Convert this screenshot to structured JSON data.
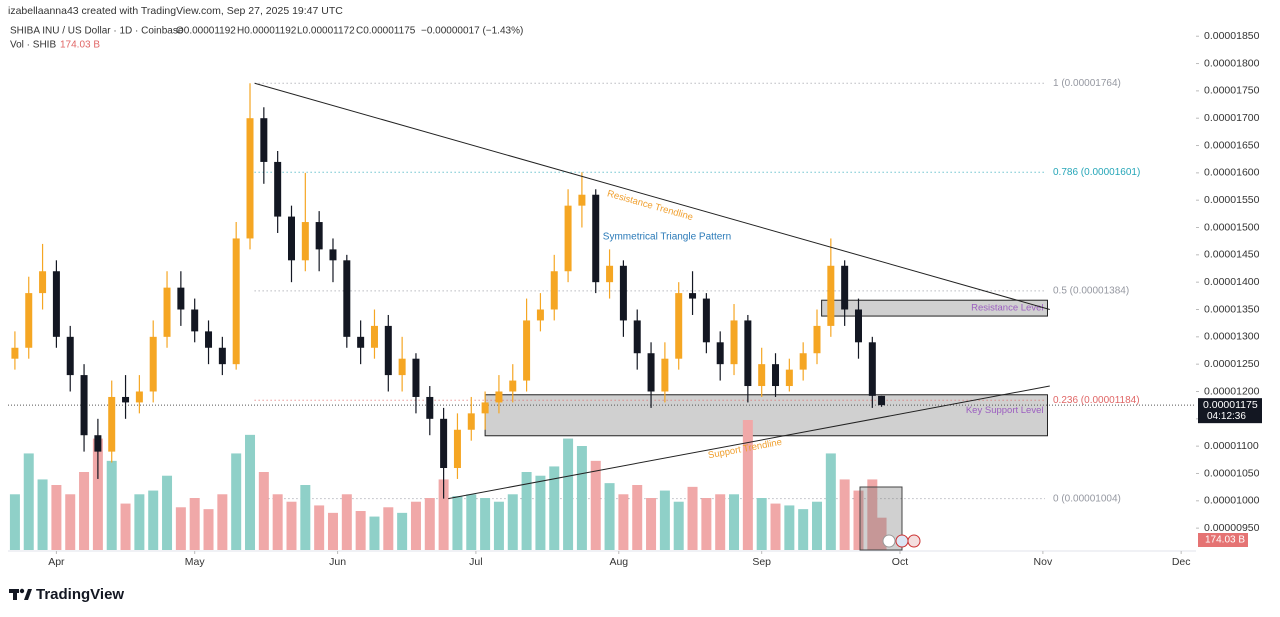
{
  "header": {
    "credit": "izabellaanna43 created with TradingView.com, Sep 27, 2025 19:47 UTC",
    "symbol": "SHIBA INU / US Dollar · 1D · Coinbase",
    "open": "O0.00001192",
    "high": "H0.00001192",
    "low": "L0.00001172",
    "close": "C0.00001175",
    "change": "−0.00000017 (−1.43%)",
    "volume_name": "Vol · SHIB",
    "volume": "174.03 B"
  },
  "footer": {
    "brand": "TradingView"
  },
  "chart_data": {
    "type": "candlestick",
    "up_color": "#f5a623",
    "down_color": "#131722",
    "volume_up_color": "#8fd0c8",
    "volume_down_color": "#f0a8a8",
    "xlim": [
      -1.5,
      256
    ],
    "xticks": [
      {
        "value": 9,
        "label": "Apr"
      },
      {
        "value": 39,
        "label": "May"
      },
      {
        "value": 70,
        "label": "Jun"
      },
      {
        "value": 100,
        "label": "Jul"
      },
      {
        "value": 131,
        "label": "Aug"
      },
      {
        "value": 162,
        "label": "Sep"
      },
      {
        "value": 192,
        "label": "Oct"
      },
      {
        "value": 223,
        "label": "Nov"
      },
      {
        "value": 253,
        "label": "Dec"
      }
    ],
    "ylim": [
      9.1e-06,
      1.876e-05
    ],
    "yticks": [
      {
        "value": 1.85e-05,
        "label": "0.00001850"
      },
      {
        "value": 1.8e-05,
        "label": "0.00001800"
      },
      {
        "value": 1.75e-05,
        "label": "0.00001750"
      },
      {
        "value": 1.7e-05,
        "label": "0.00001700"
      },
      {
        "value": 1.65e-05,
        "label": "0.00001650"
      },
      {
        "value": 1.6e-05,
        "label": "0.00001600"
      },
      {
        "value": 1.55e-05,
        "label": "0.00001550"
      },
      {
        "value": 1.5e-05,
        "label": "0.00001500"
      },
      {
        "value": 1.45e-05,
        "label": "0.00001450"
      },
      {
        "value": 1.4e-05,
        "label": "0.00001400"
      },
      {
        "value": 1.35e-05,
        "label": "0.00001350"
      },
      {
        "value": 1.3e-05,
        "label": "0.00001300"
      },
      {
        "value": 1.25e-05,
        "label": "0.00001250"
      },
      {
        "value": 1.2e-05,
        "label": "0.00001200"
      },
      {
        "value": 1.15e-05,
        "label": "0.00001150"
      },
      {
        "value": 1.1e-05,
        "label": "0.00001100"
      },
      {
        "value": 1.05e-05,
        "label": "0.00001050"
      },
      {
        "value": 1e-05,
        "label": "0.00001000"
      },
      {
        "value": 9.5e-06,
        "label": "0.00000950"
      }
    ],
    "x": [
      0,
      3,
      6,
      9,
      12,
      15,
      18,
      21,
      24,
      27,
      30,
      33,
      36,
      39,
      42,
      45,
      48,
      51,
      54,
      57,
      60,
      63,
      66,
      69,
      72,
      75,
      78,
      81,
      84,
      87,
      90,
      93,
      96,
      99,
      102,
      105,
      108,
      111,
      114,
      117,
      120,
      123,
      126,
      129,
      132,
      135,
      138,
      141,
      144,
      147,
      150,
      153,
      156,
      159,
      162,
      165,
      168,
      171,
      174,
      177,
      180,
      183,
      186,
      188
    ],
    "open": [
      1.26e-05,
      1.28e-05,
      1.38e-05,
      1.42e-05,
      1.3e-05,
      1.23e-05,
      1.12e-05,
      1.09e-05,
      1.19e-05,
      1.18e-05,
      1.2e-05,
      1.3e-05,
      1.39e-05,
      1.35e-05,
      1.31e-05,
      1.28e-05,
      1.25e-05,
      1.48e-05,
      1.7e-05,
      1.62e-05,
      1.52e-05,
      1.44e-05,
      1.51e-05,
      1.46e-05,
      1.44e-05,
      1.3e-05,
      1.28e-05,
      1.32e-05,
      1.23e-05,
      1.26e-05,
      1.19e-05,
      1.15e-05,
      1.06e-05,
      1.13e-05,
      1.16e-05,
      1.18e-05,
      1.2e-05,
      1.22e-05,
      1.33e-05,
      1.35e-05,
      1.42e-05,
      1.54e-05,
      1.56e-05,
      1.4e-05,
      1.43e-05,
      1.33e-05,
      1.27e-05,
      1.2e-05,
      1.26e-05,
      1.38e-05,
      1.37e-05,
      1.29e-05,
      1.25e-05,
      1.33e-05,
      1.21e-05,
      1.25e-05,
      1.21e-05,
      1.24e-05,
      1.27e-05,
      1.32e-05,
      1.43e-05,
      1.35e-05,
      1.29e-05,
      1.192e-05
    ],
    "high": [
      1.31e-05,
      1.41e-05,
      1.47e-05,
      1.44e-05,
      1.32e-05,
      1.25e-05,
      1.15e-05,
      1.22e-05,
      1.23e-05,
      1.23e-05,
      1.33e-05,
      1.42e-05,
      1.42e-05,
      1.37e-05,
      1.33e-05,
      1.3e-05,
      1.51e-05,
      1.764e-05,
      1.72e-05,
      1.64e-05,
      1.54e-05,
      1.6e-05,
      1.53e-05,
      1.48e-05,
      1.45e-05,
      1.33e-05,
      1.35e-05,
      1.34e-05,
      1.3e-05,
      1.27e-05,
      1.21e-05,
      1.17e-05,
      1.16e-05,
      1.19e-05,
      1.2e-05,
      1.23e-05,
      1.25e-05,
      1.37e-05,
      1.38e-05,
      1.45e-05,
      1.57e-05,
      1.601e-05,
      1.57e-05,
      1.46e-05,
      1.44e-05,
      1.35e-05,
      1.29e-05,
      1.29e-05,
      1.4e-05,
      1.42e-05,
      1.38e-05,
      1.31e-05,
      1.36e-05,
      1.34e-05,
      1.28e-05,
      1.27e-05,
      1.26e-05,
      1.29e-05,
      1.35e-05,
      1.48e-05,
      1.44e-05,
      1.37e-05,
      1.3e-05,
      1.192e-05
    ],
    "low": [
      1.24e-05,
      1.26e-05,
      1.35e-05,
      1.28e-05,
      1.2e-05,
      1.09e-05,
      1.04e-05,
      1.07e-05,
      1.15e-05,
      1.16e-05,
      1.18e-05,
      1.28e-05,
      1.32e-05,
      1.29e-05,
      1.25e-05,
      1.23e-05,
      1.24e-05,
      1.46e-05,
      1.58e-05,
      1.49e-05,
      1.4e-05,
      1.42e-05,
      1.42e-05,
      1.4e-05,
      1.28e-05,
      1.25e-05,
      1.26e-05,
      1.2e-05,
      1.2e-05,
      1.16e-05,
      1.12e-05,
      1.004e-05,
      1.04e-05,
      1.11e-05,
      1.13e-05,
      1.16e-05,
      1.18e-05,
      1.2e-05,
      1.31e-05,
      1.33e-05,
      1.4e-05,
      1.5e-05,
      1.38e-05,
      1.37e-05,
      1.3e-05,
      1.24e-05,
      1.17e-05,
      1.18e-05,
      1.24e-05,
      1.34e-05,
      1.27e-05,
      1.22e-05,
      1.23e-05,
      1.18e-05,
      1.19e-05,
      1.19e-05,
      1.2e-05,
      1.22e-05,
      1.25e-05,
      1.3e-05,
      1.32e-05,
      1.26e-05,
      1.17e-05,
      1.172e-05
    ],
    "close": [
      1.28e-05,
      1.38e-05,
      1.42e-05,
      1.3e-05,
      1.23e-05,
      1.12e-05,
      1.09e-05,
      1.19e-05,
      1.18e-05,
      1.2e-05,
      1.3e-05,
      1.39e-05,
      1.35e-05,
      1.31e-05,
      1.28e-05,
      1.25e-05,
      1.48e-05,
      1.7e-05,
      1.62e-05,
      1.52e-05,
      1.44e-05,
      1.51e-05,
      1.46e-05,
      1.44e-05,
      1.3e-05,
      1.28e-05,
      1.32e-05,
      1.23e-05,
      1.26e-05,
      1.19e-05,
      1.15e-05,
      1.06e-05,
      1.13e-05,
      1.16e-05,
      1.18e-05,
      1.2e-05,
      1.22e-05,
      1.33e-05,
      1.35e-05,
      1.42e-05,
      1.54e-05,
      1.56e-05,
      1.4e-05,
      1.43e-05,
      1.33e-05,
      1.27e-05,
      1.2e-05,
      1.26e-05,
      1.38e-05,
      1.37e-05,
      1.29e-05,
      1.25e-05,
      1.33e-05,
      1.21e-05,
      1.25e-05,
      1.21e-05,
      1.24e-05,
      1.27e-05,
      1.32e-05,
      1.43e-05,
      1.35e-05,
      1.29e-05,
      1.192e-05,
      1.175e-05
    ],
    "volume": [
      300,
      520,
      380,
      350,
      300,
      420,
      600,
      480,
      250,
      300,
      320,
      400,
      230,
      280,
      220,
      300,
      520,
      620,
      420,
      300,
      260,
      350,
      240,
      200,
      300,
      210,
      180,
      230,
      200,
      260,
      280,
      380,
      290,
      300,
      280,
      260,
      300,
      420,
      400,
      450,
      600,
      560,
      480,
      360,
      300,
      350,
      280,
      320,
      260,
      340,
      280,
      300,
      300,
      700,
      280,
      250,
      240,
      220,
      260,
      520,
      380,
      320,
      380,
      174.03
    ],
    "volume_label": "174.03 B",
    "last_price": {
      "value": 1.175e-05,
      "label": "0.00001175"
    },
    "countdown": "04:12:36",
    "fib": [
      {
        "value": 1.764e-05,
        "label": "1 (0.00001764)",
        "color": "#9598a1",
        "from": 52
      },
      {
        "value": 1.601e-05,
        "label": "0.786 (0.00001601)",
        "color": "#26a6b8",
        "from": 52
      },
      {
        "value": 1.384e-05,
        "label": "0.5 (0.00001384)",
        "color": "#9598a1",
        "from": 52
      },
      {
        "value": 1.184e-05,
        "label": "0.236 (0.00001184)",
        "color": "#e06666",
        "from": 52
      },
      {
        "value": 1.004e-05,
        "label": "0 (0.00001004)",
        "color": "#9598a1",
        "from": 55
      }
    ],
    "trendlines": [
      {
        "points": [
          [
            52,
            1.764e-05
          ],
          [
            224.5,
            1.35e-05
          ]
        ],
        "label": "Resistance Trendline"
      },
      {
        "points": [
          [
            94,
            1.004e-05
          ],
          [
            224.5,
            1.21e-05
          ]
        ],
        "label": "Support Trendline"
      }
    ],
    "zones": [
      {
        "x0": 175,
        "x1": 224,
        "top": 1.367e-05,
        "bottom": 1.338e-05,
        "label": "Resistance Level",
        "color": "#9c5fc0"
      },
      {
        "x0": 102,
        "x1": 224,
        "top": 1.194e-05,
        "bottom": 1.119e-05,
        "label": "Key Support Level",
        "color": "#9c5fc0"
      }
    ],
    "pattern_label": "Symmetrical Triangle Pattern"
  }
}
